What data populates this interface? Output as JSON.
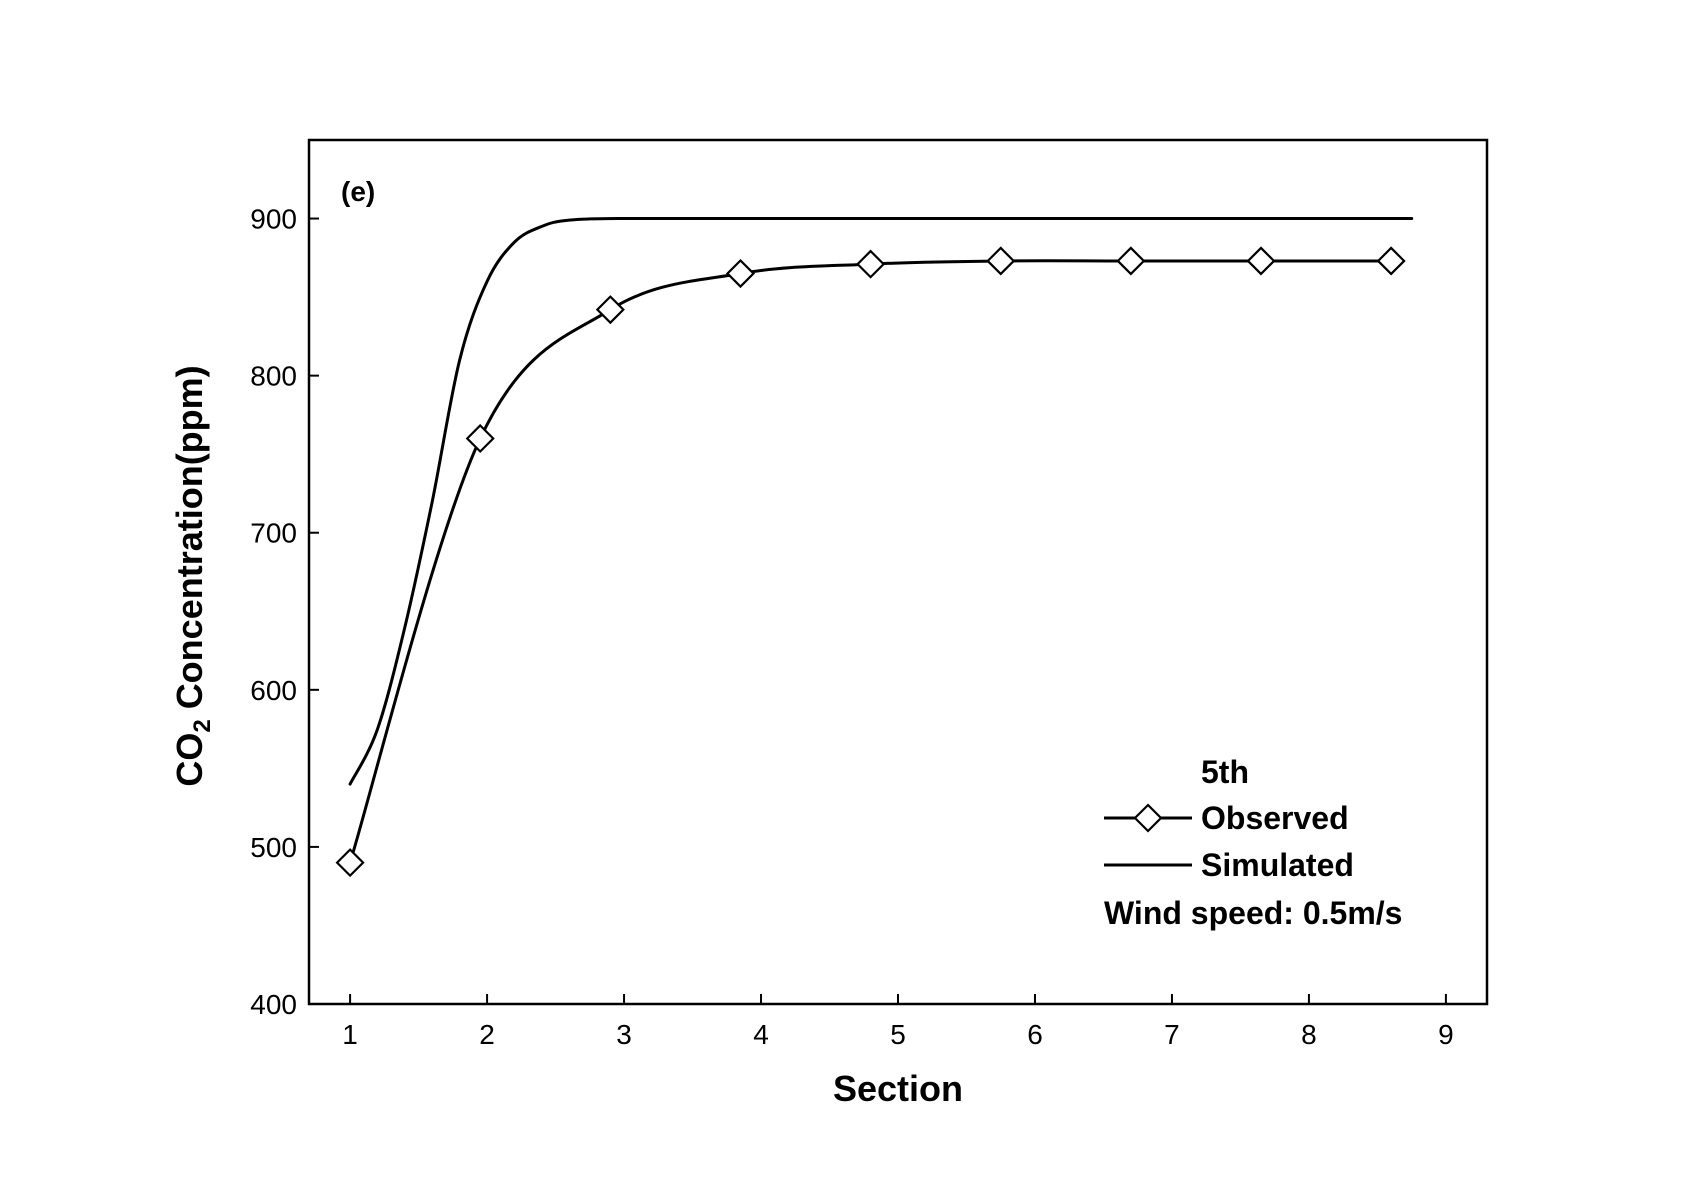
{
  "chart_data": {
    "type": "line",
    "panel_label": "(e)",
    "xlabel": "Section",
    "ylabel_main": "CO",
    "ylabel_sub": "2",
    "ylabel_rest": " Concentration(ppm)",
    "xlim": [
      0.7,
      9.3
    ],
    "ylim": [
      400,
      950
    ],
    "xticks": [
      1,
      2,
      3,
      4,
      5,
      6,
      7,
      8,
      9
    ],
    "yticks": [
      400,
      500,
      600,
      700,
      800,
      900
    ],
    "grid": false,
    "legend": {
      "placement": "bottom-right",
      "title": "5th",
      "note": "Wind speed: 0.5m/s"
    },
    "series": [
      {
        "name": "Observed",
        "marker": "diamond",
        "x": [
          1.0,
          1.95,
          2.9,
          3.85,
          4.8,
          5.75,
          6.7,
          7.65,
          8.6
        ],
        "y": [
          490,
          760,
          842,
          865,
          871,
          873,
          873,
          873,
          873
        ]
      },
      {
        "name": "Simulated",
        "marker": "none",
        "x": [
          1.0,
          1.2,
          1.4,
          1.6,
          1.8,
          2.0,
          2.2,
          2.4,
          2.6,
          3.0,
          4.0,
          5.0,
          6.0,
          7.0,
          8.0,
          8.75
        ],
        "y": [
          540,
          575,
          640,
          720,
          810,
          860,
          885,
          895,
          899,
          900,
          900,
          900,
          900,
          900,
          900,
          900
        ]
      }
    ],
    "colors": {
      "line": "#000000",
      "marker_fill": "#ffffff"
    }
  }
}
